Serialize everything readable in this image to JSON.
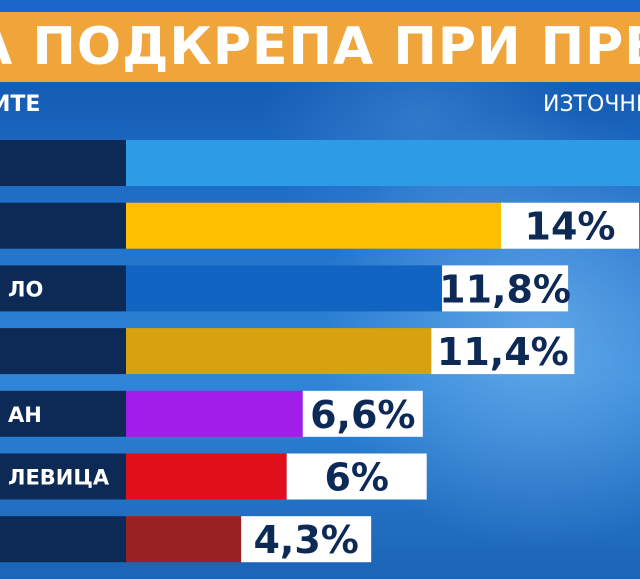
{
  "title": "А ПОДКРЕПА ПРИ ПРЕДСРО",
  "subheader_left": "ИТЕ",
  "subheader_right": "ИЗТОЧНИ",
  "colors": {
    "title_bg": "#f0a53a",
    "label_bg": "#0d2a57",
    "value_box": "#ffffff",
    "value_text": "#0d2a57"
  },
  "chart_data": {
    "type": "bar",
    "orientation": "horizontal",
    "title": "",
    "xlabel": "",
    "ylabel": "",
    "categories": [
      "",
      "",
      "ЛО",
      "",
      "АН",
      "ЛЕВИЦА",
      ""
    ],
    "values": [
      null,
      14,
      11.8,
      11.4,
      6.6,
      6,
      4.3
    ],
    "value_labels": [
      "",
      "14%",
      "11,8%",
      "11,4%",
      "6,6%",
      "6%",
      "4,3%"
    ],
    "bar_colors": [
      "#2d9be6",
      "#fdc000",
      "#1264c3",
      "#d7a10f",
      "#a11ee8",
      "#e0101a",
      "#9a2121"
    ],
    "grid": false,
    "legend": "none"
  }
}
